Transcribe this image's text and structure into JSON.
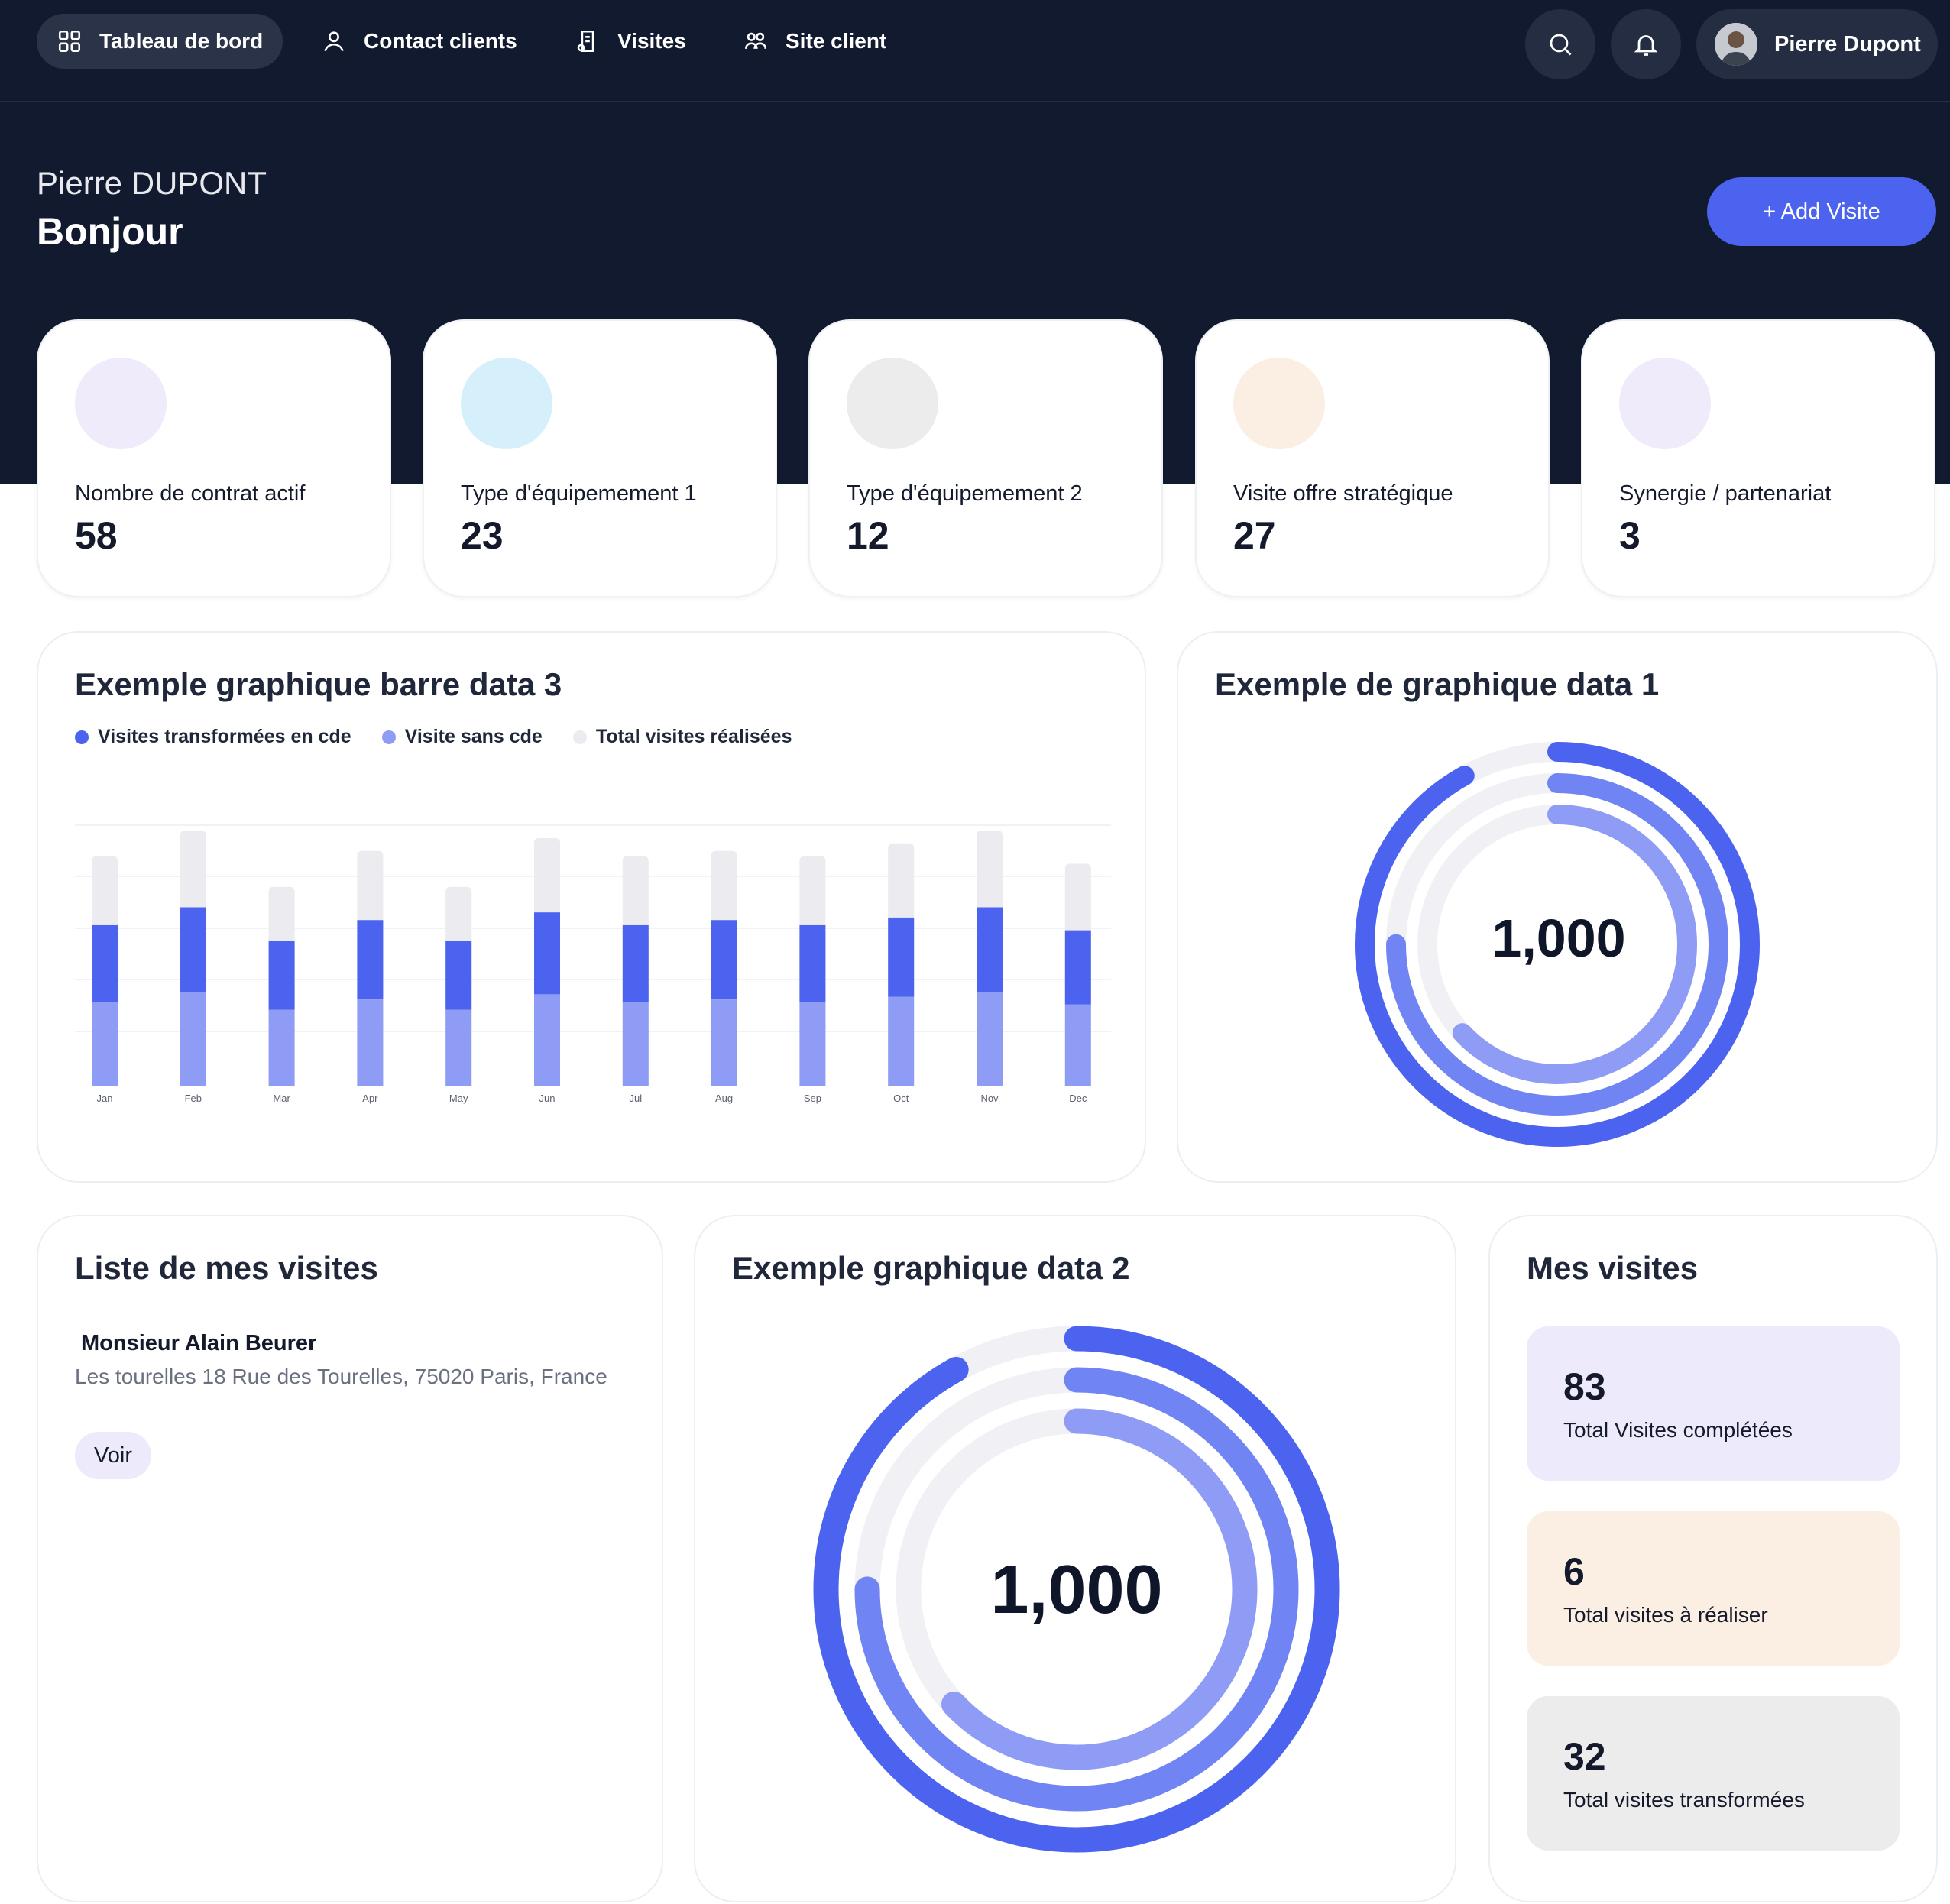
{
  "nav": {
    "items": [
      {
        "label": "Tableau de bord",
        "icon": "grid-icon",
        "active": true
      },
      {
        "label": "Contact clients",
        "icon": "user-icon"
      },
      {
        "label": "Visites",
        "icon": "document-icon"
      },
      {
        "label": "Site client",
        "icon": "users-icon"
      }
    ],
    "user_name": "Pierre Dupont"
  },
  "hero": {
    "name": "Pierre DUPONT",
    "greeting": "Bonjour",
    "add_button": "+ Add Visite"
  },
  "kpis": [
    {
      "label": "Nombre de contrat actif",
      "value": "58",
      "color": "#efebfb"
    },
    {
      "label": "Type d'équipemement 1",
      "value": "23",
      "color": "#d6f0fb"
    },
    {
      "label": "Type d'équipemement 2",
      "value": "12",
      "color": "#ebeceb"
    },
    {
      "label": "Visite offre stratégique",
      "value": "27",
      "color": "#fbeee3"
    },
    {
      "label": "Synergie / partenariat",
      "value": "3",
      "color": "#efebfb"
    }
  ],
  "bar_card": {
    "title": "Exemple graphique barre data 3"
  },
  "donut1_card": {
    "title": "Exemple de graphique data 1",
    "center": "1,000"
  },
  "donut2_card": {
    "title": "Exemple graphique data 2",
    "center": "1,000"
  },
  "visits_list": {
    "title": "Liste de mes visites",
    "items": [
      {
        "name": "Monsieur Alain Beurer",
        "address": "Les tourelles 18 Rue des Tourelles, 75020 Paris, France",
        "button": "Voir"
      }
    ]
  },
  "my_visits": {
    "title": "Mes visites",
    "stats": [
      {
        "value": "83",
        "label": "Total Visites complétées",
        "color": "#edebfb"
      },
      {
        "value": "6",
        "label": "Total visites à réaliser",
        "color": "#fbeee3"
      },
      {
        "value": "32",
        "label": "Total visites transformées",
        "color": "#ebeceb"
      }
    ]
  },
  "colors": {
    "dark": "#111a2e",
    "accent": "#4c63f0",
    "mid": "#7184f3",
    "light": "#8f9cf5",
    "track": "#ebebf0"
  },
  "chart_data": [
    {
      "type": "bar",
      "title": "Exemple graphique barre data 3",
      "categories": [
        "Jan",
        "Feb",
        "Mar",
        "Apr",
        "May",
        "Jun",
        "Jul",
        "Aug",
        "Sep",
        "Oct",
        "Nov",
        "Dec"
      ],
      "series": [
        {
          "name": "Visites transformées en cde",
          "color": "#4c63f0",
          "values": [
            30,
            33,
            27,
            31,
            27,
            32,
            30,
            31,
            30,
            31,
            33,
            29
          ]
        },
        {
          "name": "Visite sans cde",
          "color": "#8f9cf5",
          "values": [
            33,
            37,
            30,
            34,
            30,
            36,
            33,
            34,
            33,
            35,
            37,
            32
          ]
        },
        {
          "name": "Total visites réalisées",
          "color": "#ebebf0",
          "values": [
            90,
            100,
            78,
            92,
            78,
            97,
            90,
            92,
            90,
            95,
            100,
            87
          ]
        }
      ],
      "stacked": true,
      "legend": "top-left",
      "grid": true
    },
    {
      "type": "radial",
      "title": "Exemple de graphique data 1",
      "center_label": "1,000",
      "series": [
        {
          "color": "#4c63f0",
          "fraction": 0.92
        },
        {
          "color": "#7184f3",
          "fraction": 0.75
        },
        {
          "color": "#8f9cf5",
          "fraction": 0.63
        }
      ]
    },
    {
      "type": "radial",
      "title": "Exemple graphique data 2",
      "center_label": "1,000",
      "series": [
        {
          "color": "#4c63f0",
          "fraction": 0.92
        },
        {
          "color": "#7184f3",
          "fraction": 0.75
        },
        {
          "color": "#8f9cf5",
          "fraction": 0.63
        }
      ]
    }
  ]
}
